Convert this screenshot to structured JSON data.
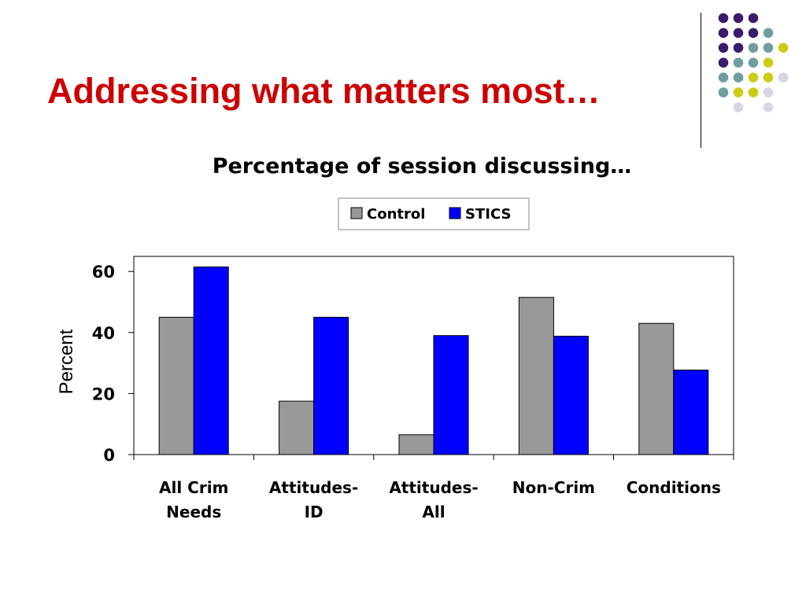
{
  "slide": {
    "title": "Addressing what matters most…"
  },
  "decoration": {
    "dot_colors": [
      "#3d1a6b",
      "#6f9e9f",
      "#cccc18",
      "#d6d6e6"
    ]
  },
  "chart_data": {
    "type": "bar",
    "title": "Percentage of session discussing…",
    "ylabel": "Percent",
    "xlabel": "",
    "categories": [
      [
        "All Crim",
        "Needs"
      ],
      [
        "Attitudes-",
        "ID"
      ],
      [
        "Attitudes-",
        "All"
      ],
      [
        "Non-Crim"
      ],
      [
        "Conditions"
      ]
    ],
    "series": [
      {
        "name": "Control",
        "color": "#999999",
        "values": [
          45,
          17.5,
          6.5,
          51.5,
          43
        ]
      },
      {
        "name": "STICS",
        "color": "#0000ff",
        "values": [
          61.5,
          45,
          39,
          38.8,
          27.7
        ]
      }
    ],
    "ylim": [
      0,
      65
    ],
    "yticks": [
      0,
      20,
      40,
      60
    ],
    "legend_position": "top-center",
    "grid": false
  }
}
